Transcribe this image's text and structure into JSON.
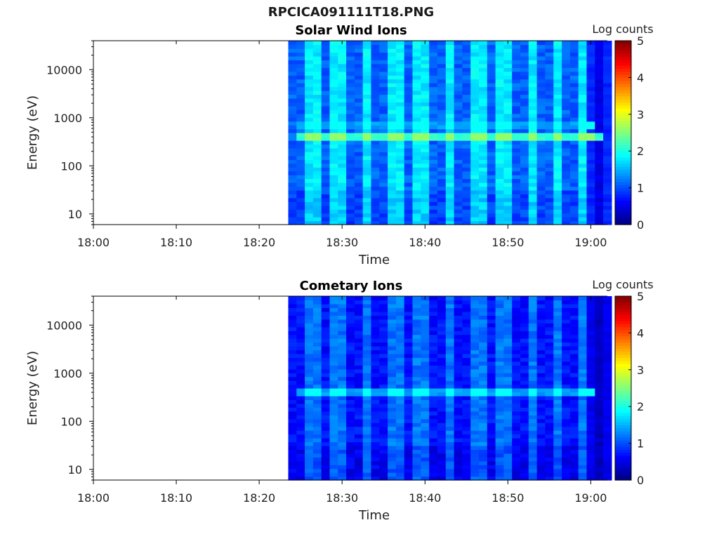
{
  "figure_title": "RPCICA091111T18.PNG",
  "colormap": [
    "#00007f",
    "#0000ff",
    "#007fff",
    "#00ffff",
    "#7fff7f",
    "#ffff00",
    "#ff7f00",
    "#ff0000",
    "#7f0000"
  ],
  "chart_data": [
    {
      "type": "heatmap",
      "title": "Solar Wind Ions",
      "xlabel": "Time",
      "ylabel": "Energy (eV)",
      "yscale": "log",
      "x_ticks": [
        "18:00",
        "18:10",
        "18:20",
        "18:30",
        "18:40",
        "18:50",
        "19:00"
      ],
      "y_ticks": [
        "10",
        "100",
        "1000",
        "10000"
      ],
      "xlim": [
        "18:00",
        "19:02"
      ],
      "ylim": [
        6,
        40000
      ],
      "data_start": "18:23.5",
      "colorbar": {
        "label": "Log counts",
        "range": [
          0,
          5
        ],
        "ticks": [
          "0",
          "1",
          "2",
          "3",
          "4",
          "5"
        ]
      },
      "features": [
        {
          "energy_eV": 380,
          "log_counts": 2.6,
          "from": "18:24",
          "to": "19:01",
          "note": "peak band"
        },
        {
          "energy_eV": 720,
          "log_counts": 1.9,
          "from": "18:24",
          "to": "19:00",
          "note": "secondary band"
        }
      ],
      "bright_columns_log_counts": 1.8,
      "dark_columns_log_counts": 1.1
    },
    {
      "type": "heatmap",
      "title": "Cometary Ions",
      "xlabel": "Time",
      "ylabel": "Energy (eV)",
      "yscale": "log",
      "x_ticks": [
        "18:00",
        "18:10",
        "18:20",
        "18:30",
        "18:40",
        "18:50",
        "19:00"
      ],
      "y_ticks": [
        "10",
        "100",
        "1000",
        "10000"
      ],
      "xlim": [
        "18:00",
        "19:02"
      ],
      "ylim": [
        6,
        40000
      ],
      "data_start": "18:23.5",
      "colorbar": {
        "label": "Log counts",
        "range": [
          0,
          5
        ],
        "ticks": [
          "0",
          "1",
          "2",
          "3",
          "4",
          "5"
        ]
      },
      "features": [
        {
          "energy_eV": 380,
          "log_counts": 1.9,
          "from": "18:24",
          "to": "19:00",
          "note": "peak band"
        }
      ],
      "bright_columns_log_counts": 1.2,
      "dark_columns_log_counts": 0.7
    }
  ]
}
